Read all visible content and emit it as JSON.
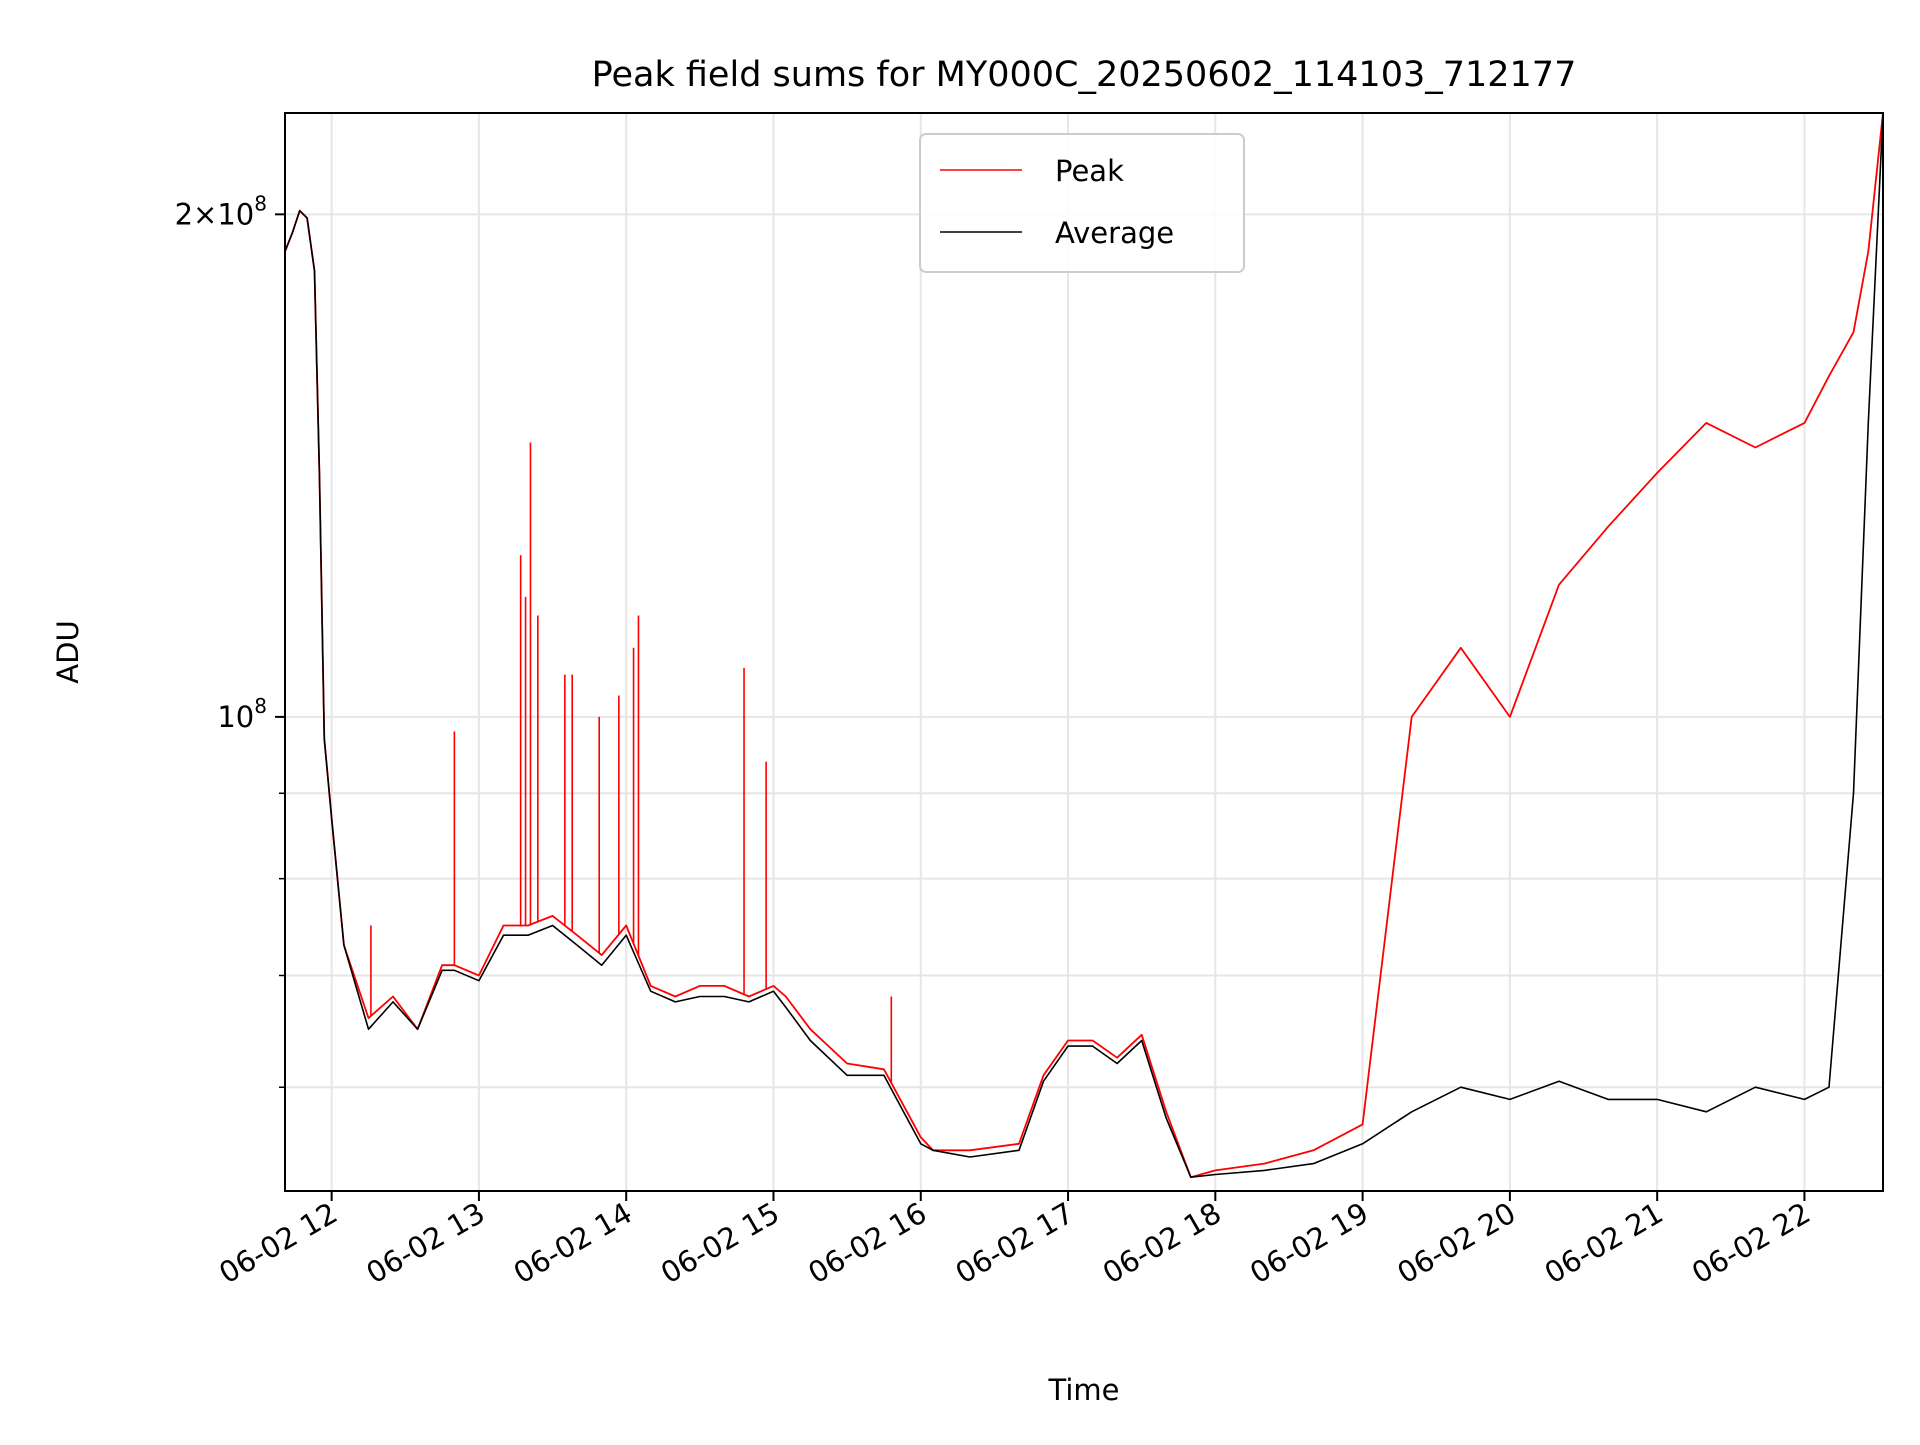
{
  "chart_data": {
    "type": "line",
    "title": "Peak field sums for MY000C_20250602_114103_712177",
    "xlabel": "Time",
    "ylabel": "ADU",
    "x_type": "datetime",
    "xlim": [
      "2025-06-02 11:41",
      "2025-06-02 22:32"
    ],
    "xticks": [
      {
        "value": "2025-06-02 12:00",
        "label": "06-02 12"
      },
      {
        "value": "2025-06-02 13:00",
        "label": "06-02 13"
      },
      {
        "value": "2025-06-02 14:00",
        "label": "06-02 14"
      },
      {
        "value": "2025-06-02 15:00",
        "label": "06-02 15"
      },
      {
        "value": "2025-06-02 16:00",
        "label": "06-02 16"
      },
      {
        "value": "2025-06-02 17:00",
        "label": "06-02 17"
      },
      {
        "value": "2025-06-02 18:00",
        "label": "06-02 18"
      },
      {
        "value": "2025-06-02 19:00",
        "label": "06-02 19"
      },
      {
        "value": "2025-06-02 20:00",
        "label": "06-02 20"
      },
      {
        "value": "2025-06-02 21:00",
        "label": "06-02 21"
      },
      {
        "value": "2025-06-02 22:00",
        "label": "06-02 22"
      }
    ],
    "y_scale": "log",
    "ylim": [
      52000000,
      230000000
    ],
    "yticks_major": [
      {
        "value": 100000000,
        "label": "10^8"
      },
      {
        "value": 200000000,
        "label": "2×10^8"
      }
    ],
    "yticks_minor": [
      60000000,
      70000000,
      80000000,
      90000000
    ],
    "grid": true,
    "legend_position": "top-center",
    "series": [
      {
        "name": "Peak",
        "color": "#ff0000",
        "x": [
          "2025-06-02 11:41",
          "2025-06-02 11:44",
          "2025-06-02 11:47",
          "2025-06-02 11:50",
          "2025-06-02 11:53",
          "2025-06-02 11:55",
          "2025-06-02 11:57",
          "2025-06-02 12:00",
          "2025-06-02 12:05",
          "2025-06-02 12:15",
          "2025-06-02 12:25",
          "2025-06-02 12:35",
          "2025-06-02 12:45",
          "2025-06-02 12:50",
          "2025-06-02 13:00",
          "2025-06-02 13:10",
          "2025-06-02 13:20",
          "2025-06-02 13:30",
          "2025-06-02 13:40",
          "2025-06-02 13:50",
          "2025-06-02 14:00",
          "2025-06-02 14:10",
          "2025-06-02 14:20",
          "2025-06-02 14:30",
          "2025-06-02 14:40",
          "2025-06-02 14:50",
          "2025-06-02 15:00",
          "2025-06-02 15:05",
          "2025-06-02 15:15",
          "2025-06-02 15:30",
          "2025-06-02 15:45",
          "2025-06-02 16:00",
          "2025-06-02 16:05",
          "2025-06-02 16:20",
          "2025-06-02 16:40",
          "2025-06-02 16:50",
          "2025-06-02 17:00",
          "2025-06-02 17:10",
          "2025-06-02 17:20",
          "2025-06-02 17:30",
          "2025-06-02 17:40",
          "2025-06-02 17:50",
          "2025-06-02 18:00",
          "2025-06-02 18:20",
          "2025-06-02 18:40",
          "2025-06-02 19:00",
          "2025-06-02 19:20",
          "2025-06-02 19:40",
          "2025-06-02 20:00",
          "2025-06-02 20:20",
          "2025-06-02 20:40",
          "2025-06-02 21:00",
          "2025-06-02 21:20",
          "2025-06-02 21:40",
          "2025-06-02 22:00",
          "2025-06-02 22:10",
          "2025-06-02 22:20",
          "2025-06-02 22:26",
          "2025-06-02 22:32"
        ],
        "y": [
          190000000,
          195000000,
          201000000,
          199000000,
          185000000,
          140000000,
          97000000,
          87000000,
          73000000,
          66000000,
          68000000,
          65000000,
          71000000,
          71000000,
          70000000,
          75000000,
          75000000,
          76000000,
          74000000,
          72000000,
          75000000,
          69000000,
          68000000,
          69000000,
          69000000,
          68000000,
          69000000,
          68000000,
          65000000,
          62000000,
          61500000,
          56000000,
          55000000,
          55000000,
          55500000,
          61000000,
          64000000,
          64000000,
          62500000,
          64500000,
          58000000,
          53000000,
          53500000,
          54000000,
          55000000,
          57000000,
          100000000,
          110000000,
          100000000,
          120000000,
          130000000,
          140000000,
          150000000,
          145000000,
          150000000,
          160000000,
          170000000,
          190000000,
          230000000
        ],
        "spikes": [
          {
            "x": "2025-06-02 12:16",
            "y": 75000000
          },
          {
            "x": "2025-06-02 12:50",
            "y": 98000000
          },
          {
            "x": "2025-06-02 13:17",
            "y": 125000000
          },
          {
            "x": "2025-06-02 13:19",
            "y": 118000000
          },
          {
            "x": "2025-06-02 13:21",
            "y": 146000000
          },
          {
            "x": "2025-06-02 13:24",
            "y": 115000000
          },
          {
            "x": "2025-06-02 13:35",
            "y": 106000000
          },
          {
            "x": "2025-06-02 13:38",
            "y": 106000000
          },
          {
            "x": "2025-06-02 13:49",
            "y": 100000000
          },
          {
            "x": "2025-06-02 13:57",
            "y": 103000000
          },
          {
            "x": "2025-06-02 14:03",
            "y": 110000000
          },
          {
            "x": "2025-06-02 14:05",
            "y": 115000000
          },
          {
            "x": "2025-06-02 14:48",
            "y": 107000000
          },
          {
            "x": "2025-06-02 14:57",
            "y": 94000000
          },
          {
            "x": "2025-06-02 15:48",
            "y": 68000000
          }
        ]
      },
      {
        "name": "Average",
        "color": "#000000",
        "x": [
          "2025-06-02 11:41",
          "2025-06-02 11:44",
          "2025-06-02 11:47",
          "2025-06-02 11:50",
          "2025-06-02 11:53",
          "2025-06-02 11:55",
          "2025-06-02 11:57",
          "2025-06-02 12:00",
          "2025-06-02 12:05",
          "2025-06-02 12:15",
          "2025-06-02 12:25",
          "2025-06-02 12:35",
          "2025-06-02 12:45",
          "2025-06-02 12:50",
          "2025-06-02 13:00",
          "2025-06-02 13:10",
          "2025-06-02 13:20",
          "2025-06-02 13:30",
          "2025-06-02 13:40",
          "2025-06-02 13:50",
          "2025-06-02 14:00",
          "2025-06-02 14:10",
          "2025-06-02 14:20",
          "2025-06-02 14:30",
          "2025-06-02 14:40",
          "2025-06-02 14:50",
          "2025-06-02 15:00",
          "2025-06-02 15:05",
          "2025-06-02 15:15",
          "2025-06-02 15:30",
          "2025-06-02 15:45",
          "2025-06-02 16:00",
          "2025-06-02 16:05",
          "2025-06-02 16:20",
          "2025-06-02 16:40",
          "2025-06-02 16:50",
          "2025-06-02 17:00",
          "2025-06-02 17:10",
          "2025-06-02 17:20",
          "2025-06-02 17:30",
          "2025-06-02 17:40",
          "2025-06-02 17:50",
          "2025-06-02 18:00",
          "2025-06-02 18:20",
          "2025-06-02 18:40",
          "2025-06-02 19:00",
          "2025-06-02 19:20",
          "2025-06-02 19:40",
          "2025-06-02 20:00",
          "2025-06-02 20:20",
          "2025-06-02 20:40",
          "2025-06-02 21:00",
          "2025-06-02 21:20",
          "2025-06-02 21:40",
          "2025-06-02 22:00",
          "2025-06-02 22:10",
          "2025-06-02 22:20",
          "2025-06-02 22:26",
          "2025-06-02 22:32"
        ],
        "y": [
          190000000,
          195000000,
          201000000,
          199000000,
          185000000,
          140000000,
          97000000,
          87000000,
          73000000,
          65000000,
          67500000,
          65000000,
          70500000,
          70500000,
          69500000,
          74000000,
          74000000,
          75000000,
          73000000,
          71000000,
          74000000,
          68500000,
          67500000,
          68000000,
          68000000,
          67500000,
          68500000,
          67000000,
          64000000,
          61000000,
          61000000,
          55500000,
          55000000,
          54500000,
          55000000,
          60500000,
          63500000,
          63500000,
          62000000,
          64000000,
          57500000,
          53000000,
          53200000,
          53500000,
          54000000,
          55500000,
          58000000,
          60000000,
          59000000,
          60500000,
          59000000,
          59000000,
          58000000,
          60000000,
          59000000,
          60000000,
          90000000,
          150000000,
          230000000
        ]
      }
    ]
  }
}
